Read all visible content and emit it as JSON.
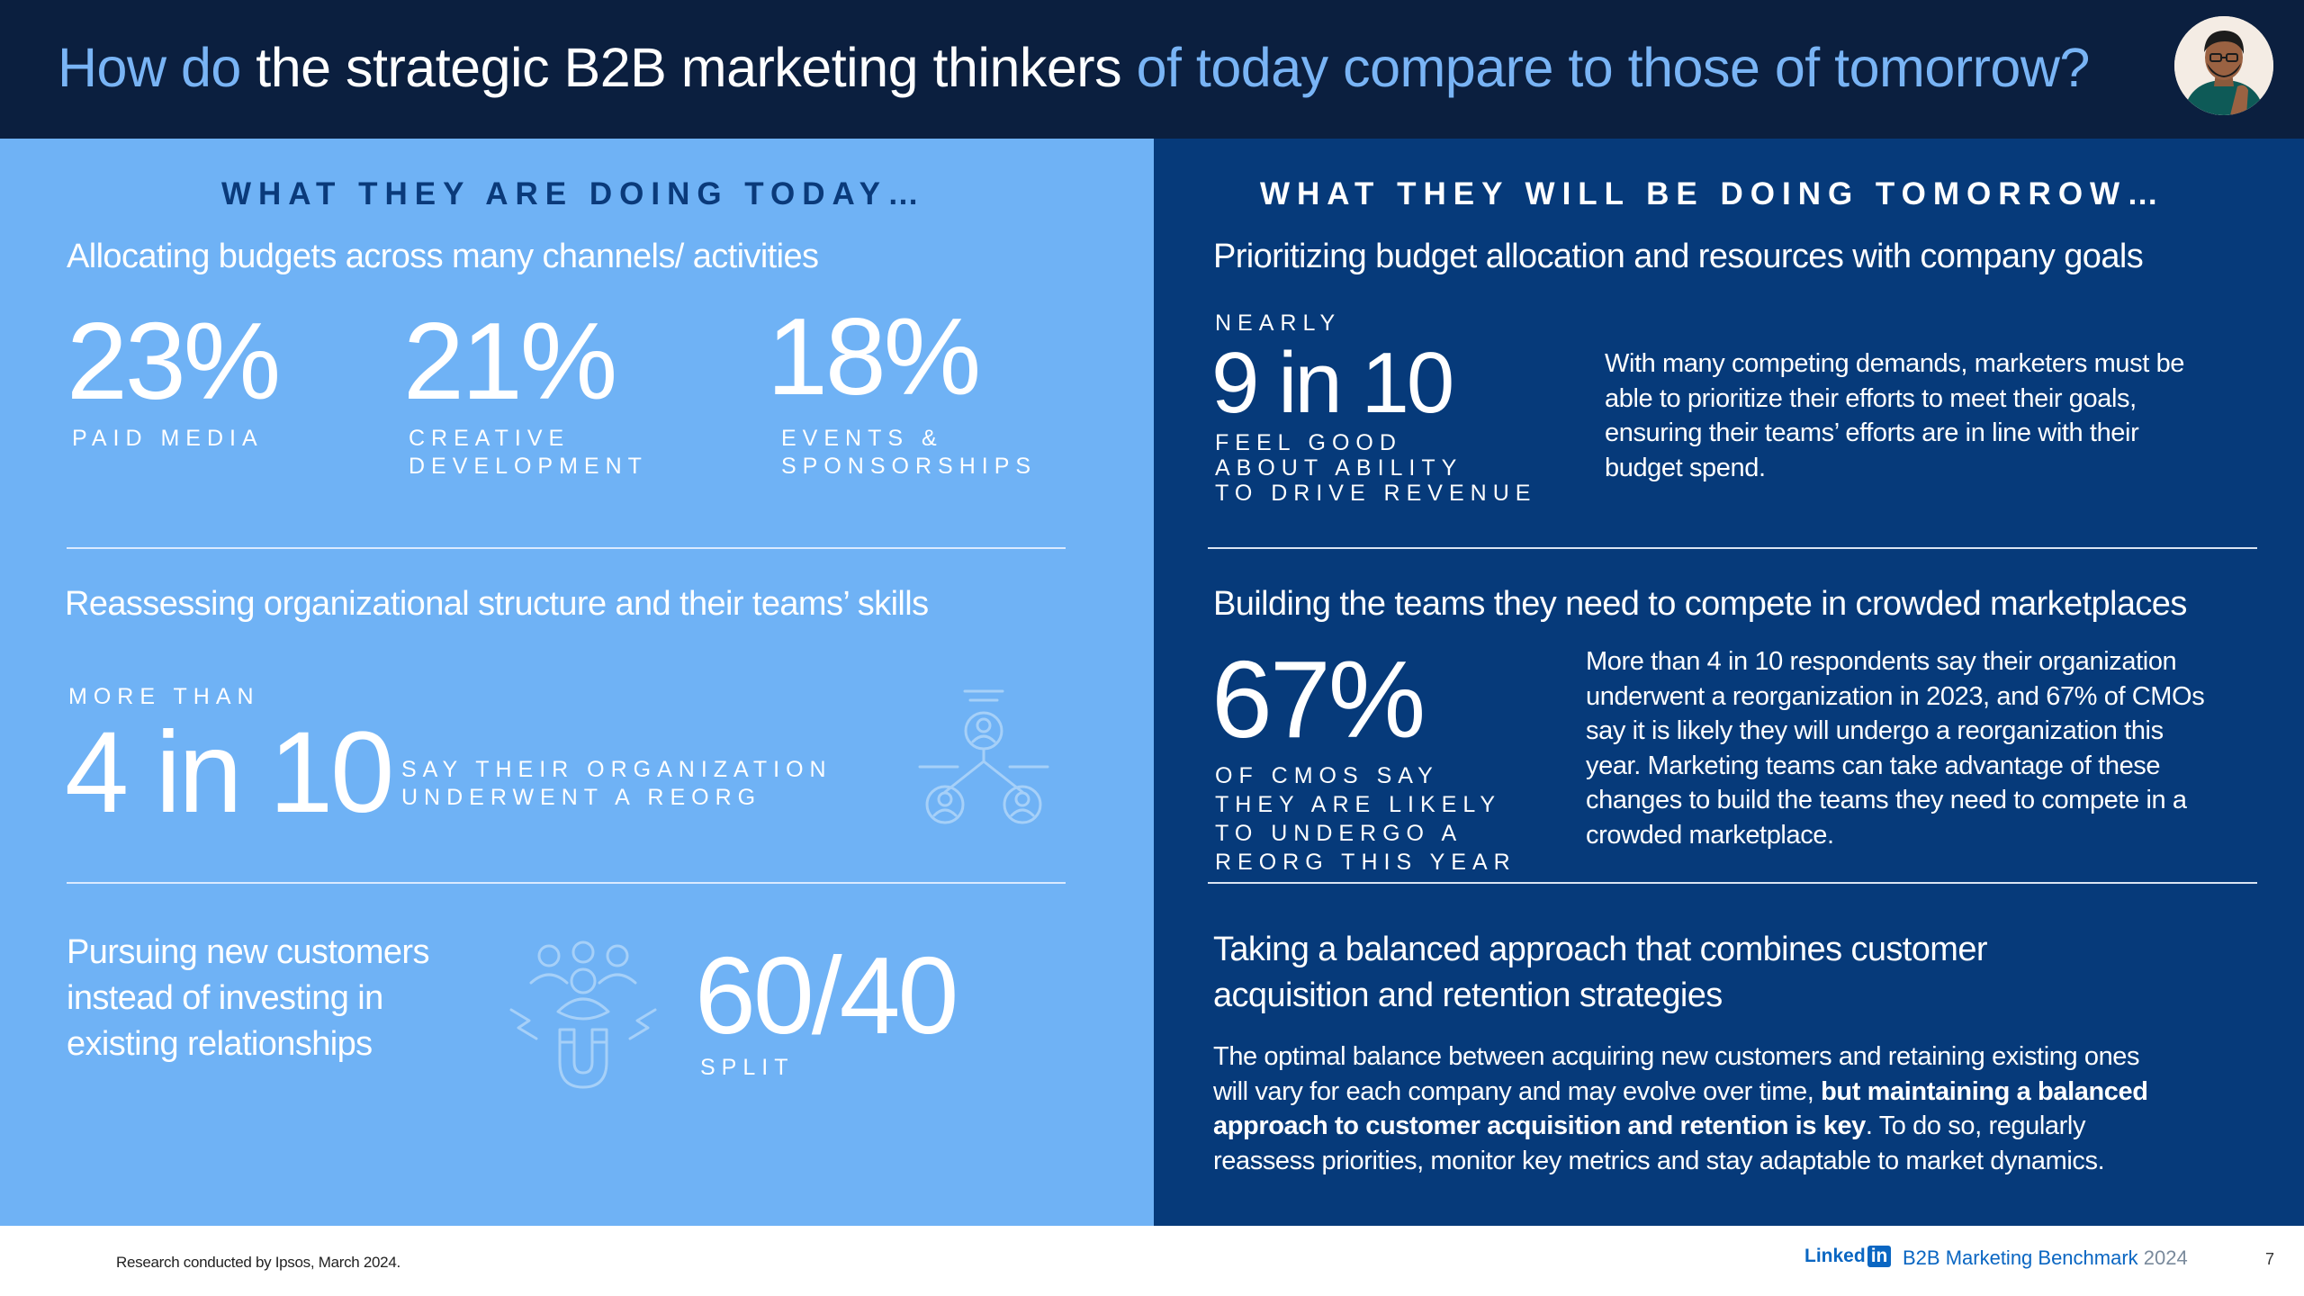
{
  "header": {
    "title_a": "How do",
    "title_b": "the strategic B2B marketing thinkers",
    "title_c": "of today compare to those of tomorrow?",
    "avatar_icon": "person-portrait-icon"
  },
  "today": {
    "heading": "WHAT THEY ARE DOING TODAY…",
    "section1": {
      "title": "Allocating budgets across many channels/ activities",
      "stats": [
        {
          "value": "23%",
          "label": "PAID MEDIA"
        },
        {
          "value": "21%",
          "label": "CREATIVE\nDEVELOPMENT"
        },
        {
          "value": "18%",
          "label": "EVENTS &\nSPONSORSHIPS"
        }
      ]
    },
    "section2": {
      "title": "Reassessing organizational structure and their teams’ skills",
      "pre": "MORE THAN",
      "value": "4 in 10",
      "label": "SAY THEIR ORGANIZATION\nUNDERWENT A REORG",
      "icon": "org-structure-icon"
    },
    "section3": {
      "title": "Pursuing new customers\ninstead of investing in\nexisting relationships",
      "icon": "customer-magnet-icon",
      "value": "60/40",
      "label": "SPLIT"
    }
  },
  "tomorrow": {
    "heading": "WHAT THEY WILL BE DOING TOMORROW…",
    "section1": {
      "title": "Prioritizing budget allocation and resources with company goals",
      "pre": "NEARLY",
      "value": "9 in 10",
      "label": "FEEL GOOD\nABOUT ABILITY\nTO DRIVE REVENUE",
      "text": "With many competing demands, marketers must be able to prioritize their efforts to meet their goals, ensuring their teams’ efforts are in line with their budget spend."
    },
    "section2": {
      "title": "Building the teams they need to compete in crowded marketplaces",
      "value": "67%",
      "label": "OF CMOS SAY\nTHEY ARE LIKELY\nTO UNDERGO A\nREORG THIS YEAR",
      "text": "More than 4 in 10 respondents say their organization underwent a reorganization in 2023, and 67% of CMOs say it is likely they will undergo a reorganization this year. Marketing teams can take advantage of these changes to build the teams they need to compete in a crowded marketplace."
    },
    "section3": {
      "title": "Taking a balanced approach that combines customer\nacquisition and retention strategies",
      "text_a": "The optimal balance between acquiring new customers and retaining existing ones will vary for each company and may evolve over time,",
      "text_b": "but maintaining a balanced approach to customer acquisition and retention is key",
      "text_c": ". To do so, regularly reassess priorities, monitor key metrics and stay adaptable to market dynamics."
    }
  },
  "footer": {
    "note": "Research conducted by Ipsos, March 2024.",
    "brand_a": "Linked",
    "brand_b": "in",
    "benchmark": "B2B Marketing Benchmark",
    "year": "2024",
    "page": "7"
  }
}
